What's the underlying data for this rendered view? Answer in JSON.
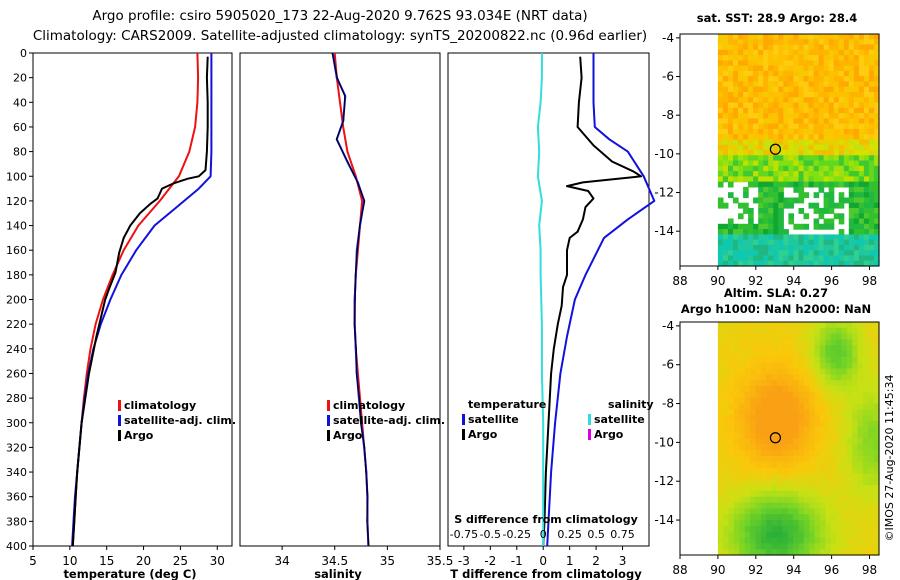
{
  "header": {
    "line1": "Argo profile: csiro 5905020_173 22-Aug-2020 9.762S 93.034E (NRT data)",
    "line2": "Climatology: CARS2009. Satellite-adjusted climatology: synTS_20200822.nc (0.96d earlier)"
  },
  "footer": {
    "timestamp": "©IMOS 27-Aug-2020 11:45:34"
  },
  "colors": {
    "red": "#ee1111",
    "blue": "#1111dd",
    "black": "#000000",
    "cyan": "#33dddd",
    "magenta": "#dd00dd"
  },
  "chart_data": [
    {
      "id": "temperature",
      "type": "line",
      "xlabel": "temperature (deg C)",
      "ylabel": "",
      "xlim": [
        5,
        32
      ],
      "ylim": [
        400,
        0
      ],
      "xticks": [
        5,
        10,
        15,
        20,
        25,
        30
      ],
      "yticks": [
        0,
        20,
        40,
        60,
        80,
        100,
        120,
        140,
        160,
        180,
        200,
        220,
        240,
        260,
        280,
        300,
        320,
        340,
        360,
        380,
        400
      ],
      "legend": [
        "climatology",
        "satellite-adj. clim.",
        "Argo"
      ],
      "series": [
        {
          "name": "climatology",
          "color": "red",
          "points": [
            [
              27.3,
              0
            ],
            [
              27.4,
              20
            ],
            [
              27.3,
              40
            ],
            [
              27.0,
              60
            ],
            [
              26.2,
              80
            ],
            [
              24.8,
              100
            ],
            [
              22.2,
              120
            ],
            [
              19.3,
              140
            ],
            [
              17.3,
              160
            ],
            [
              15.8,
              180
            ],
            [
              14.5,
              200
            ],
            [
              13.5,
              220
            ],
            [
              12.8,
              240
            ],
            [
              12.3,
              260
            ],
            [
              11.9,
              280
            ],
            [
              11.6,
              300
            ],
            [
              11.3,
              320
            ],
            [
              11.0,
              340
            ],
            [
              10.8,
              360
            ],
            [
              10.6,
              380
            ],
            [
              10.4,
              400
            ]
          ]
        },
        {
          "name": "satellite-adj. clim.",
          "color": "blue",
          "points": [
            [
              29.2,
              0
            ],
            [
              29.2,
              20
            ],
            [
              29.2,
              40
            ],
            [
              29.2,
              60
            ],
            [
              29.2,
              80
            ],
            [
              29.1,
              100
            ],
            [
              27.5,
              110
            ],
            [
              24.5,
              125
            ],
            [
              21.5,
              140
            ],
            [
              19.0,
              160
            ],
            [
              17.0,
              180
            ],
            [
              15.5,
              200
            ],
            [
              14.2,
              220
            ],
            [
              13.2,
              240
            ],
            [
              12.5,
              260
            ],
            [
              12.0,
              280
            ],
            [
              11.6,
              300
            ],
            [
              11.3,
              320
            ],
            [
              11.0,
              340
            ],
            [
              10.7,
              360
            ],
            [
              10.5,
              380
            ],
            [
              10.3,
              400
            ]
          ]
        },
        {
          "name": "Argo",
          "color": "black",
          "points": [
            [
              28.7,
              3
            ],
            [
              28.6,
              20
            ],
            [
              28.7,
              40
            ],
            [
              28.7,
              60
            ],
            [
              28.6,
              80
            ],
            [
              28.4,
              95
            ],
            [
              27.5,
              100
            ],
            [
              26.0,
              102
            ],
            [
              24.0,
              106
            ],
            [
              22.5,
              110
            ],
            [
              21.9,
              118
            ],
            [
              21.0,
              122
            ],
            [
              19.5,
              130
            ],
            [
              18.2,
              140
            ],
            [
              17.3,
              150
            ],
            [
              16.7,
              162
            ],
            [
              16.2,
              178
            ],
            [
              15.4,
              190
            ],
            [
              14.8,
              200
            ],
            [
              14.2,
              215
            ],
            [
              13.6,
              230
            ],
            [
              13.1,
              245
            ],
            [
              12.6,
              260
            ],
            [
              12.1,
              280
            ],
            [
              11.6,
              300
            ],
            [
              11.3,
              320
            ],
            [
              11.0,
              340
            ],
            [
              10.8,
              360
            ],
            [
              10.6,
              380
            ],
            [
              10.4,
              400
            ]
          ]
        }
      ]
    },
    {
      "id": "salinity",
      "type": "line",
      "xlabel": "salinity",
      "xlim": [
        33.6,
        35.5
      ],
      "ylim": [
        400,
        0
      ],
      "xticks": [
        34,
        34.5,
        35,
        35.5
      ],
      "xticklabels": [
        "34",
        "34.5",
        "35",
        "35.5"
      ],
      "legend": [
        "climatology",
        "satellite-adj. clim.",
        "Argo"
      ],
      "series": [
        {
          "name": "climatology",
          "color": "red",
          "points": [
            [
              34.5,
              0
            ],
            [
              34.52,
              20
            ],
            [
              34.55,
              40
            ],
            [
              34.58,
              60
            ],
            [
              34.62,
              80
            ],
            [
              34.7,
              100
            ],
            [
              34.76,
              120
            ],
            [
              34.74,
              140
            ],
            [
              34.72,
              160
            ],
            [
              34.7,
              180
            ],
            [
              34.69,
              200
            ],
            [
              34.69,
              220
            ],
            [
              34.7,
              240
            ],
            [
              34.72,
              260
            ],
            [
              34.74,
              280
            ],
            [
              34.76,
              300
            ],
            [
              34.78,
              320
            ],
            [
              34.8,
              340
            ],
            [
              34.81,
              360
            ],
            [
              34.81,
              380
            ],
            [
              34.82,
              400
            ]
          ]
        },
        {
          "name": "satellite-adj. clim.",
          "color": "blue",
          "points": [
            [
              34.48,
              0
            ],
            [
              34.52,
              20
            ],
            [
              34.6,
              35
            ],
            [
              34.58,
              55
            ],
            [
              34.52,
              70
            ],
            [
              34.63,
              90
            ],
            [
              34.72,
              105
            ],
            [
              34.78,
              120
            ],
            [
              34.74,
              140
            ],
            [
              34.71,
              160
            ],
            [
              34.7,
              180
            ],
            [
              34.69,
              200
            ],
            [
              34.69,
              220
            ],
            [
              34.7,
              240
            ],
            [
              34.71,
              260
            ],
            [
              34.73,
              280
            ],
            [
              34.75,
              300
            ],
            [
              34.78,
              320
            ],
            [
              34.8,
              340
            ],
            [
              34.81,
              360
            ],
            [
              34.81,
              380
            ],
            [
              34.82,
              400
            ]
          ]
        }
      ]
    },
    {
      "id": "difference",
      "type": "line",
      "xlabel": "T difference from climatology",
      "title_bottom": "S difference from climatology",
      "xlim": [
        -3.6,
        4.0
      ],
      "ylim": [
        400,
        0
      ],
      "xticks": [
        -3,
        -2,
        -1,
        0,
        1,
        2,
        3
      ],
      "xticklabels": [
        "-3",
        "-2",
        "-1",
        "0",
        "1",
        "2",
        "3"
      ],
      "sticks": [
        "-0.75",
        "-0.5",
        "-0.25",
        "0",
        "0.25",
        "0.5",
        "0.75"
      ],
      "legend_left_title": "temperature",
      "legend_right_title": "salinity",
      "legend": [
        "satellite",
        "Argo"
      ],
      "series": [
        {
          "name": "satellite temperature",
          "color": "blue",
          "points": [
            [
              1.9,
              0
            ],
            [
              1.9,
              20
            ],
            [
              1.9,
              40
            ],
            [
              1.95,
              60
            ],
            [
              2.5,
              70
            ],
            [
              3.2,
              80
            ],
            [
              3.8,
              100
            ],
            [
              4.0,
              110
            ],
            [
              4.2,
              120
            ],
            [
              3.2,
              135
            ],
            [
              2.3,
              150
            ],
            [
              1.6,
              180
            ],
            [
              1.2,
              200
            ],
            [
              0.9,
              230
            ],
            [
              0.65,
              260
            ],
            [
              0.45,
              300
            ],
            [
              0.3,
              340
            ],
            [
              0.2,
              380
            ],
            [
              0.15,
              400
            ]
          ]
        },
        {
          "name": "Argo temperature",
          "color": "black",
          "points": [
            [
              1.4,
              3
            ],
            [
              1.45,
              20
            ],
            [
              1.35,
              40
            ],
            [
              1.3,
              60
            ],
            [
              1.9,
              75
            ],
            [
              2.6,
              88
            ],
            [
              3.4,
              96
            ],
            [
              3.7,
              100
            ],
            [
              1.5,
              105
            ],
            [
              0.9,
              108
            ],
            [
              1.7,
              112
            ],
            [
              1.9,
              118
            ],
            [
              1.6,
              125
            ],
            [
              1.5,
              135
            ],
            [
              1.3,
              145
            ],
            [
              1.0,
              150
            ],
            [
              0.9,
              160
            ],
            [
              0.9,
              180
            ],
            [
              0.75,
              190
            ],
            [
              0.7,
              205
            ],
            [
              0.55,
              220
            ],
            [
              0.4,
              240
            ],
            [
              0.3,
              260
            ],
            [
              0.2,
              300
            ],
            [
              0.1,
              340
            ],
            [
              0.05,
              380
            ],
            [
              0.0,
              400
            ]
          ]
        },
        {
          "name": "satellite salinity",
          "color": "cyan",
          "points": [
            [
              -0.05,
              0
            ],
            [
              -0.05,
              20
            ],
            [
              -0.1,
              40
            ],
            [
              -0.2,
              60
            ],
            [
              -0.15,
              80
            ],
            [
              -0.2,
              100
            ],
            [
              -0.05,
              120
            ],
            [
              -0.15,
              140
            ],
            [
              -0.1,
              160
            ],
            [
              -0.1,
              180
            ],
            [
              -0.05,
              220
            ],
            [
              -0.05,
              260
            ],
            [
              0.0,
              300
            ],
            [
              0.0,
              340
            ],
            [
              0.0,
              380
            ],
            [
              0.0,
              400
            ]
          ]
        }
      ]
    },
    {
      "id": "sst_map",
      "type": "heatmap",
      "title": "sat. SST: 28.9 Argo: 28.4",
      "xlim": [
        88,
        98.5
      ],
      "ylim": [
        -15.8,
        -3.8
      ],
      "xticks": [
        88,
        90,
        92,
        94,
        96,
        98
      ],
      "yticks": [
        -4,
        -6,
        -8,
        -10,
        -12,
        -14
      ],
      "data_extent": {
        "lon": [
          90,
          98.5
        ],
        "lat": [
          -15.8,
          -3.8
        ]
      },
      "float_position": {
        "lon": 93.034,
        "lat": -9.762
      }
    },
    {
      "id": "sla_map",
      "type": "heatmap",
      "title1": "Altim. SLA: 0.27",
      "title2": "Argo h1000: NaN h2000: NaN",
      "xlim": [
        88,
        98.5
      ],
      "ylim": [
        -15.8,
        -3.8
      ],
      "xticks": [
        88,
        90,
        92,
        94,
        96,
        98
      ],
      "yticks": [
        -4,
        -6,
        -8,
        -10,
        -12,
        -14
      ],
      "data_extent": {
        "lon": [
          90,
          98.5
        ],
        "lat": [
          -15.8,
          -3.8
        ]
      },
      "float_position": {
        "lon": 93.034,
        "lat": -9.762
      }
    }
  ]
}
